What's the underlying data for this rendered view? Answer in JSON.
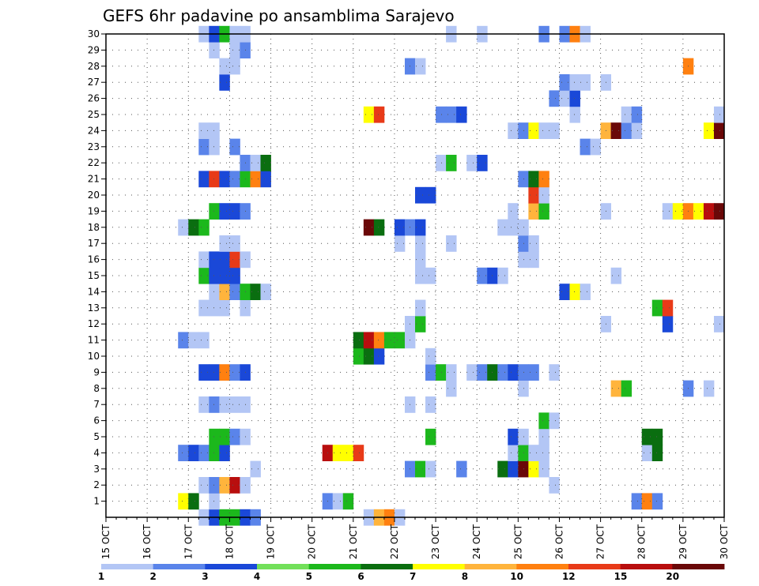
{
  "chart_data": {
    "type": "heatmap",
    "title": "GEFS 6hr padavine po ansamblima Sarajevo",
    "xlabel": "",
    "ylabel": "",
    "x_tick_labels": [
      "15 OCT",
      "16 OCT",
      "17 OCT",
      "18 OCT",
      "19 OCT",
      "20 OCT",
      "21 OCT",
      "22 OCT",
      "23 OCT",
      "24 OCT",
      "25 OCT",
      "26 OCT",
      "27 OCT",
      "28 OCT",
      "29 OCT",
      "30 OCT"
    ],
    "x_range_days": [
      15,
      30
    ],
    "y_range": [
      0,
      30
    ],
    "y_ticks": [
      1,
      2,
      3,
      4,
      5,
      6,
      7,
      8,
      9,
      10,
      11,
      12,
      13,
      14,
      15,
      16,
      17,
      18,
      19,
      20,
      21,
      22,
      23,
      24,
      25,
      26,
      27,
      28,
      29,
      30
    ],
    "time_step_hours": 6,
    "grid": "dotted",
    "legend": {
      "position": "bottom",
      "labels": [
        "1",
        "2",
        "3",
        "4",
        "5",
        "6",
        "7",
        "8",
        "10",
        "12",
        "15",
        "20"
      ],
      "colors": [
        "#b3c6f5",
        "#5a84ea",
        "#1a48d8",
        "#72e05a",
        "#1cb81c",
        "#0a6e10",
        "#ffff00",
        "#ffb43c",
        "#ff8010",
        "#e83a18",
        "#b80e0e",
        "#6a0808"
      ]
    },
    "cells": [
      [
        0,
        17.25,
        1
      ],
      [
        0,
        17.5,
        3
      ],
      [
        0,
        17.75,
        5
      ],
      [
        0,
        18.0,
        5
      ],
      [
        0,
        18.25,
        3
      ],
      [
        0,
        18.5,
        2
      ],
      [
        0,
        21.25,
        1
      ],
      [
        0,
        21.5,
        8
      ],
      [
        0,
        21.75,
        9
      ],
      [
        0,
        22.0,
        1
      ],
      [
        1,
        16.75,
        7
      ],
      [
        1,
        17.0,
        6
      ],
      [
        1,
        17.5,
        1
      ],
      [
        1,
        20.25,
        2
      ],
      [
        1,
        20.5,
        1
      ],
      [
        1,
        20.75,
        5
      ],
      [
        1,
        27.75,
        2
      ],
      [
        1,
        28.0,
        9
      ],
      [
        1,
        28.25,
        2
      ],
      [
        2,
        17.25,
        1
      ],
      [
        2,
        17.5,
        2
      ],
      [
        2,
        17.75,
        8
      ],
      [
        2,
        18.0,
        11
      ],
      [
        2,
        18.25,
        1
      ],
      [
        2,
        25.75,
        1
      ],
      [
        3,
        18.5,
        1
      ],
      [
        3,
        22.25,
        2
      ],
      [
        3,
        22.5,
        5
      ],
      [
        3,
        22.75,
        1
      ],
      [
        3,
        23.5,
        2
      ],
      [
        3,
        24.5,
        6
      ],
      [
        3,
        24.75,
        3
      ],
      [
        3,
        25.0,
        12
      ],
      [
        3,
        25.25,
        7
      ],
      [
        3,
        25.5,
        1
      ],
      [
        4,
        16.75,
        2
      ],
      [
        4,
        17.0,
        3
      ],
      [
        4,
        17.25,
        2
      ],
      [
        4,
        17.5,
        5
      ],
      [
        4,
        17.75,
        3
      ],
      [
        4,
        20.25,
        11
      ],
      [
        4,
        20.5,
        7
      ],
      [
        4,
        20.75,
        7
      ],
      [
        4,
        21.0,
        10
      ],
      [
        4,
        24.75,
        1
      ],
      [
        4,
        25.0,
        5
      ],
      [
        4,
        25.25,
        1
      ],
      [
        4,
        25.5,
        1
      ],
      [
        4,
        28.0,
        1
      ],
      [
        4,
        28.25,
        6
      ],
      [
        5,
        17.5,
        5
      ],
      [
        5,
        17.75,
        5
      ],
      [
        5,
        18.0,
        2
      ],
      [
        5,
        18.25,
        1
      ],
      [
        5,
        22.75,
        5
      ],
      [
        5,
        24.75,
        3
      ],
      [
        5,
        25.0,
        1
      ],
      [
        5,
        25.5,
        1
      ],
      [
        5,
        28.0,
        6
      ],
      [
        5,
        28.25,
        6
      ],
      [
        6,
        25.5,
        5
      ],
      [
        6,
        25.75,
        1
      ],
      [
        7,
        17.25,
        1
      ],
      [
        7,
        17.5,
        2
      ],
      [
        7,
        17.75,
        1
      ],
      [
        7,
        18.0,
        1
      ],
      [
        7,
        18.25,
        1
      ],
      [
        7,
        22.25,
        1
      ],
      [
        7,
        22.75,
        1
      ],
      [
        8,
        23.25,
        1
      ],
      [
        8,
        25.0,
        1
      ],
      [
        8,
        27.25,
        8
      ],
      [
        8,
        27.5,
        5
      ],
      [
        8,
        29.0,
        2
      ],
      [
        8,
        29.5,
        1
      ],
      [
        9,
        17.25,
        3
      ],
      [
        9,
        17.5,
        3
      ],
      [
        9,
        17.75,
        9
      ],
      [
        9,
        18.0,
        2
      ],
      [
        9,
        18.25,
        3
      ],
      [
        9,
        22.75,
        2
      ],
      [
        9,
        23.0,
        5
      ],
      [
        9,
        23.25,
        1
      ],
      [
        9,
        23.75,
        1
      ],
      [
        9,
        24.0,
        2
      ],
      [
        9,
        24.25,
        6
      ],
      [
        9,
        24.5,
        2
      ],
      [
        9,
        24.75,
        3
      ],
      [
        9,
        25.0,
        2
      ],
      [
        9,
        25.25,
        2
      ],
      [
        9,
        25.75,
        1
      ],
      [
        10,
        21.0,
        5
      ],
      [
        10,
        21.25,
        6
      ],
      [
        10,
        21.5,
        3
      ],
      [
        10,
        22.75,
        1
      ],
      [
        11,
        16.75,
        2
      ],
      [
        11,
        17.0,
        1
      ],
      [
        11,
        17.25,
        1
      ],
      [
        11,
        21.0,
        6
      ],
      [
        11,
        21.25,
        11
      ],
      [
        11,
        21.5,
        9
      ],
      [
        11,
        21.75,
        5
      ],
      [
        11,
        22.0,
        5
      ],
      [
        11,
        22.25,
        1
      ],
      [
        12,
        22.25,
        1
      ],
      [
        12,
        22.5,
        5
      ],
      [
        12,
        27.0,
        1
      ],
      [
        12,
        28.5,
        3
      ],
      [
        12,
        29.75,
        1
      ],
      [
        13,
        17.25,
        1
      ],
      [
        13,
        17.5,
        1
      ],
      [
        13,
        17.75,
        1
      ],
      [
        13,
        18.25,
        1
      ],
      [
        13,
        22.5,
        1
      ],
      [
        13,
        28.25,
        5
      ],
      [
        13,
        28.5,
        10
      ],
      [
        14,
        17.5,
        1
      ],
      [
        14,
        17.75,
        8
      ],
      [
        14,
        18.0,
        2
      ],
      [
        14,
        18.25,
        5
      ],
      [
        14,
        18.5,
        6
      ],
      [
        14,
        18.75,
        1
      ],
      [
        14,
        26.0,
        3
      ],
      [
        14,
        26.25,
        7
      ],
      [
        14,
        26.5,
        1
      ],
      [
        15,
        17.25,
        5
      ],
      [
        15,
        17.5,
        3
      ],
      [
        15,
        17.75,
        3
      ],
      [
        15,
        18.0,
        3
      ],
      [
        15,
        22.5,
        1
      ],
      [
        15,
        22.75,
        1
      ],
      [
        15,
        24.0,
        2
      ],
      [
        15,
        24.25,
        3
      ],
      [
        15,
        24.5,
        1
      ],
      [
        15,
        27.25,
        1
      ],
      [
        16,
        17.25,
        1
      ],
      [
        16,
        17.5,
        3
      ],
      [
        16,
        17.75,
        3
      ],
      [
        16,
        18.0,
        10
      ],
      [
        16,
        18.25,
        1
      ],
      [
        16,
        22.5,
        1
      ],
      [
        16,
        25.0,
        1
      ],
      [
        16,
        25.25,
        1
      ],
      [
        17,
        17.75,
        1
      ],
      [
        17,
        18.0,
        1
      ],
      [
        17,
        22.0,
        1
      ],
      [
        17,
        22.5,
        1
      ],
      [
        17,
        23.25,
        1
      ],
      [
        17,
        25.0,
        2
      ],
      [
        17,
        25.25,
        1
      ],
      [
        18,
        16.75,
        1
      ],
      [
        18,
        17.0,
        6
      ],
      [
        18,
        17.25,
        5
      ],
      [
        18,
        21.25,
        12
      ],
      [
        18,
        21.5,
        6
      ],
      [
        18,
        22.0,
        3
      ],
      [
        18,
        22.25,
        2
      ],
      [
        18,
        22.5,
        3
      ],
      [
        18,
        24.5,
        1
      ],
      [
        18,
        24.75,
        1
      ],
      [
        18,
        25.0,
        1
      ],
      [
        19,
        17.5,
        5
      ],
      [
        19,
        17.75,
        3
      ],
      [
        19,
        18.0,
        3
      ],
      [
        19,
        18.25,
        2
      ],
      [
        19,
        24.75,
        1
      ],
      [
        19,
        25.25,
        8
      ],
      [
        19,
        25.5,
        5
      ],
      [
        19,
        27.0,
        1
      ],
      [
        19,
        28.5,
        1
      ],
      [
        19,
        28.75,
        7
      ],
      [
        19,
        29.0,
        9
      ],
      [
        19,
        29.25,
        7
      ],
      [
        19,
        29.5,
        11
      ],
      [
        19,
        29.75,
        12
      ],
      [
        20,
        22.5,
        3
      ],
      [
        20,
        22.75,
        3
      ],
      [
        20,
        25.25,
        10
      ],
      [
        20,
        25.5,
        1
      ],
      [
        21,
        17.25,
        3
      ],
      [
        21,
        17.5,
        10
      ],
      [
        21,
        17.75,
        3
      ],
      [
        21,
        18.0,
        2
      ],
      [
        21,
        18.25,
        5
      ],
      [
        21,
        18.5,
        9
      ],
      [
        21,
        18.75,
        3
      ],
      [
        21,
        25.0,
        2
      ],
      [
        21,
        25.25,
        6
      ],
      [
        21,
        25.5,
        9
      ],
      [
        22,
        18.25,
        2
      ],
      [
        22,
        18.5,
        1
      ],
      [
        22,
        18.75,
        6
      ],
      [
        22,
        23.0,
        1
      ],
      [
        22,
        23.25,
        5
      ],
      [
        22,
        23.75,
        1
      ],
      [
        22,
        24.0,
        3
      ],
      [
        23,
        17.25,
        2
      ],
      [
        23,
        17.5,
        1
      ],
      [
        23,
        18.0,
        2
      ],
      [
        23,
        26.5,
        2
      ],
      [
        23,
        26.75,
        1
      ],
      [
        24,
        17.25,
        1
      ],
      [
        24,
        17.5,
        1
      ],
      [
        24,
        24.75,
        1
      ],
      [
        24,
        25.0,
        2
      ],
      [
        24,
        25.25,
        7
      ],
      [
        24,
        25.5,
        1
      ],
      [
        24,
        25.75,
        1
      ],
      [
        24,
        27.0,
        8
      ],
      [
        24,
        27.25,
        12
      ],
      [
        24,
        27.5,
        2
      ],
      [
        24,
        27.75,
        1
      ],
      [
        24,
        29.5,
        7
      ],
      [
        24,
        29.75,
        12
      ],
      [
        25,
        21.25,
        7
      ],
      [
        25,
        21.5,
        10
      ],
      [
        25,
        23.0,
        2
      ],
      [
        25,
        23.25,
        2
      ],
      [
        25,
        23.5,
        3
      ],
      [
        25,
        26.25,
        1
      ],
      [
        25,
        27.5,
        1
      ],
      [
        25,
        27.75,
        2
      ],
      [
        25,
        29.75,
        1
      ],
      [
        26,
        25.75,
        2
      ],
      [
        26,
        26.0,
        1
      ],
      [
        26,
        26.25,
        3
      ],
      [
        27,
        17.75,
        3
      ],
      [
        27,
        26.0,
        2
      ],
      [
        27,
        26.25,
        1
      ],
      [
        27,
        26.5,
        1
      ],
      [
        27,
        27.0,
        1
      ],
      [
        28,
        17.75,
        1
      ],
      [
        28,
        18.0,
        1
      ],
      [
        28,
        22.25,
        2
      ],
      [
        28,
        22.5,
        1
      ],
      [
        28,
        29.0,
        9
      ],
      [
        29,
        17.5,
        1
      ],
      [
        29,
        18.0,
        1
      ],
      [
        29,
        18.25,
        2
      ],
      [
        30,
        17.25,
        1
      ],
      [
        30,
        17.5,
        3
      ],
      [
        30,
        17.75,
        5
      ],
      [
        30,
        18.0,
        1
      ],
      [
        30,
        18.25,
        1
      ],
      [
        30,
        23.25,
        1
      ],
      [
        30,
        24.0,
        1
      ],
      [
        30,
        25.5,
        2
      ],
      [
        30,
        26.0,
        2
      ],
      [
        30,
        26.25,
        9
      ],
      [
        30,
        26.5,
        1
      ]
    ]
  }
}
